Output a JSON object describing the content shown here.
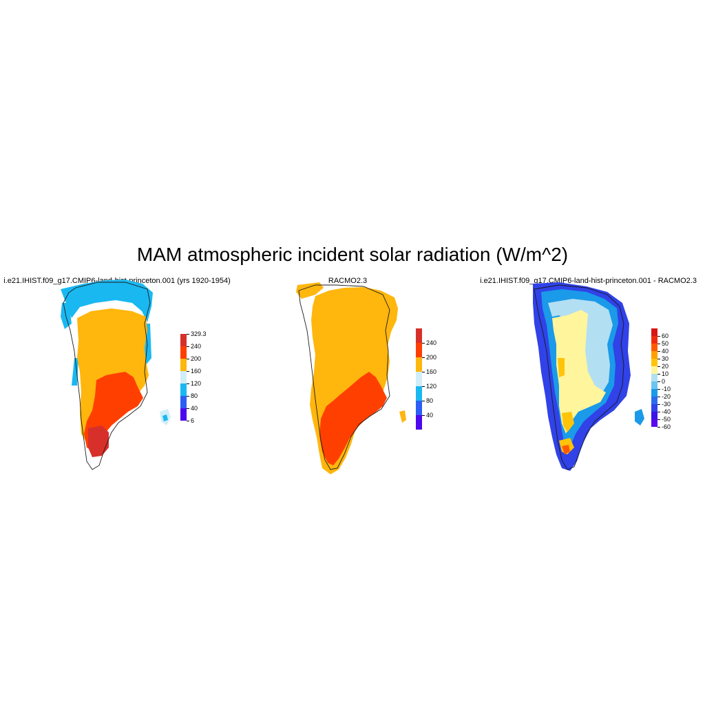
{
  "title": "MAM atmospheric incident solar radiation (W/m^2)",
  "panels": [
    {
      "title": "i.e21.IHIST.f09_g17.CMIP6-land-hist-princeton.001 (yrs 1920-1954)",
      "legend": {
        "colors": [
          "#d7302b",
          "#ff3f00",
          "#ffb60d",
          "#d1edfa",
          "#1ab8f1",
          "#2c5ef5",
          "#4c08ee"
        ],
        "labels": [
          "329.3",
          "240",
          "200",
          "160",
          "120",
          "80",
          "40",
          "6"
        ]
      }
    },
    {
      "title": "RACMO2.3",
      "legend": {
        "colors": [
          "#d7302b",
          "#ff3f00",
          "#ffb60d",
          "#d1edfa",
          "#1ab8f1",
          "#2c5ef5",
          "#4c08ee"
        ],
        "labels": [
          "240",
          "200",
          "160",
          "120",
          "80",
          "40"
        ]
      }
    },
    {
      "title": "i.e21.IHIST.f09_g17.CMIP6-land-hist-princeton.001 - RACMO2.3",
      "legend": {
        "colors": [
          "#d71515",
          "#f02a0e",
          "#ff5a00",
          "#ff9f00",
          "#ffc40a",
          "#fff59c",
          "#b3dff3",
          "#6cc4f0",
          "#1a9ae8",
          "#2b6bf0",
          "#3042e8",
          "#3b14e6",
          "#5a06ee"
        ],
        "labels": [
          "60",
          "50",
          "40",
          "30",
          "20",
          "10",
          "0",
          "-10",
          "-20",
          "-30",
          "-40",
          "-50",
          "-60"
        ]
      }
    }
  ]
}
